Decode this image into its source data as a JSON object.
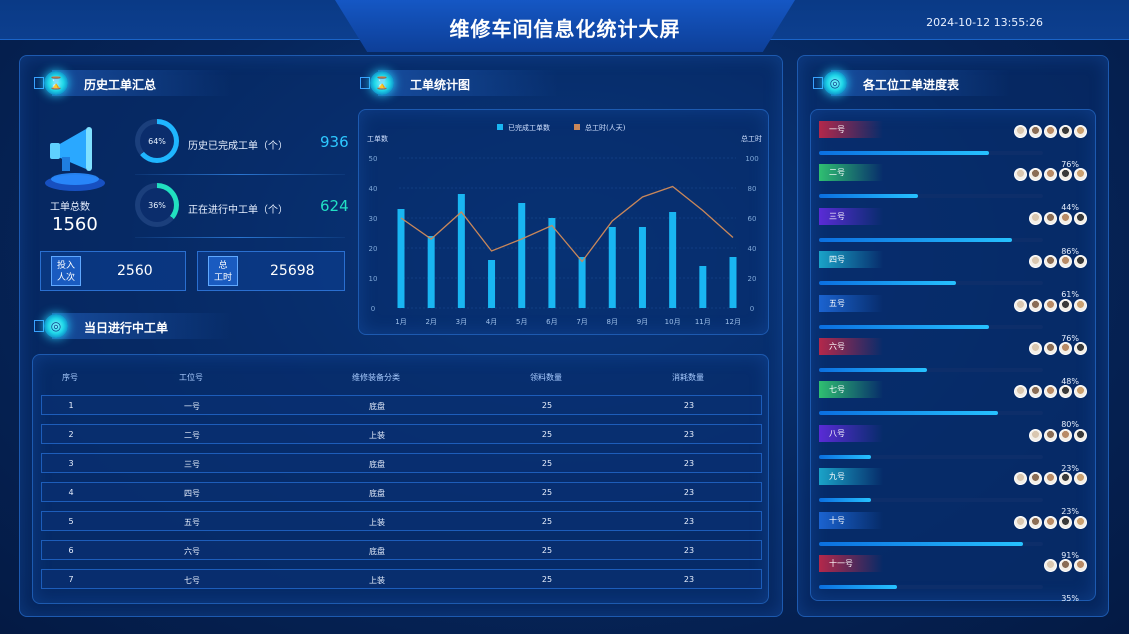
{
  "header": {
    "title": "维修车间信息化统计大屏",
    "datetime": "2024-10-12 13:55:26"
  },
  "history": {
    "title": "历史工单汇总",
    "total_label": "工单总数",
    "total_value": "1560",
    "completed": {
      "pct": "64%",
      "label": "历史已完成工单（个）",
      "value": "936",
      "fraction": 0.64,
      "color": "#1fb6ff"
    },
    "ongoing": {
      "pct": "36%",
      "label": "正在进行中工单（个）",
      "value": "624",
      "fraction": 0.36,
      "color": "#21e0c0"
    },
    "persons": {
      "tag": "投入\n人次",
      "tag1": "投入",
      "tag2": "人次",
      "value": "2560"
    },
    "hours": {
      "tag1": "总",
      "tag2": "工时",
      "value": "25698"
    }
  },
  "chart_panel": {
    "title": "工单统计图"
  },
  "chart_data": {
    "type": "bar",
    "categories": [
      "1月",
      "2月",
      "3月",
      "4月",
      "5月",
      "6月",
      "7月",
      "8月",
      "9月",
      "10月",
      "11月",
      "12月"
    ],
    "series": [
      {
        "name": "已完成工单数",
        "type": "bar",
        "axis": "left",
        "values": [
          33,
          24,
          38,
          16,
          35,
          30,
          17,
          27,
          27,
          32,
          14,
          17
        ]
      },
      {
        "name": "总工时(人天)",
        "type": "line",
        "axis": "right",
        "values": [
          60,
          46,
          64,
          38,
          46,
          55,
          31,
          58,
          74,
          81,
          65,
          47
        ]
      }
    ],
    "ylabel_left": "工单数",
    "ylabel_right": "总工时",
    "ylim_left": [
      0,
      50
    ],
    "ylim_right": [
      0,
      100
    ],
    "yticks_left": [
      "0",
      "10",
      "20",
      "30",
      "40",
      "50"
    ],
    "yticks_right": [
      "0",
      "20",
      "40",
      "60",
      "80",
      "100"
    ],
    "legend_position": "top-center",
    "colors": {
      "bar": "#19b6f2",
      "line": "#c9875a"
    }
  },
  "today": {
    "title": "当日进行中工单",
    "columns": [
      "序号",
      "工位号",
      "维修装备分类",
      "领料数量",
      "消耗数量"
    ],
    "rows": [
      [
        "1",
        "一号",
        "底盘",
        "25",
        "23"
      ],
      [
        "2",
        "二号",
        "上装",
        "25",
        "23"
      ],
      [
        "3",
        "三号",
        "底盘",
        "25",
        "23"
      ],
      [
        "4",
        "四号",
        "底盘",
        "25",
        "23"
      ],
      [
        "5",
        "五号",
        "上装",
        "25",
        "23"
      ],
      [
        "6",
        "六号",
        "底盘",
        "25",
        "23"
      ],
      [
        "7",
        "七号",
        "上装",
        "25",
        "23"
      ]
    ]
  },
  "progress": {
    "title": "各工位工单进度表",
    "items": [
      {
        "name": "一号",
        "pct": "76%",
        "fraction": 0.76,
        "color": "#b4284a",
        "avatars": 5
      },
      {
        "name": "二号",
        "pct": "44%",
        "fraction": 0.44,
        "color": "#2fbf71",
        "avatars": 5
      },
      {
        "name": "三号",
        "pct": "86%",
        "fraction": 0.86,
        "color": "#5a2bd6",
        "avatars": 4
      },
      {
        "name": "四号",
        "pct": "61%",
        "fraction": 0.61,
        "color": "#1aa3c8",
        "avatars": 4
      },
      {
        "name": "五号",
        "pct": "76%",
        "fraction": 0.76,
        "color": "#1b63d0",
        "avatars": 5
      },
      {
        "name": "六号",
        "pct": "48%",
        "fraction": 0.48,
        "color": "#b4284a",
        "avatars": 4
      },
      {
        "name": "七号",
        "pct": "80%",
        "fraction": 0.8,
        "color": "#2fbf71",
        "avatars": 5
      },
      {
        "name": "八号",
        "pct": "23%",
        "fraction": 0.23,
        "color": "#5a2bd6",
        "avatars": 4
      },
      {
        "name": "九号",
        "pct": "23%",
        "fraction": 0.23,
        "color": "#1aa3c8",
        "avatars": 5
      },
      {
        "name": "十号",
        "pct": "91%",
        "fraction": 0.91,
        "color": "#1b63d0",
        "avatars": 5
      },
      {
        "name": "十一号",
        "pct": "35%",
        "fraction": 0.35,
        "color": "#b4284a",
        "avatars": 3
      }
    ]
  }
}
